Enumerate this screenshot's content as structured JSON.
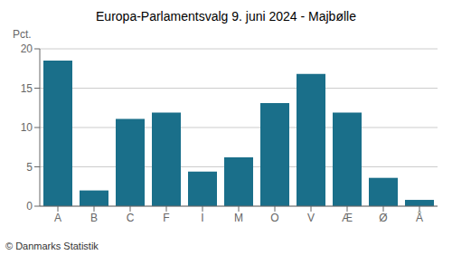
{
  "chart_data": {
    "type": "bar",
    "title": "Europa-Parlamentsvalg 9. juni 2024 - Majbølle",
    "ylabel": "Pct.",
    "annotations": [
      "© Danmarks Statistik"
    ],
    "categories": [
      "A",
      "B",
      "C",
      "F",
      "I",
      "M",
      "O",
      "V",
      "Æ",
      "Ø",
      "Å"
    ],
    "values": [
      18.5,
      2.0,
      11.1,
      11.9,
      4.4,
      6.2,
      13.1,
      16.8,
      11.9,
      3.6,
      0.8
    ],
    "color": "#1a6f8a",
    "ylim": [
      0,
      20
    ],
    "yticks": [
      0,
      5,
      10,
      15,
      20
    ],
    "grid": true
  }
}
